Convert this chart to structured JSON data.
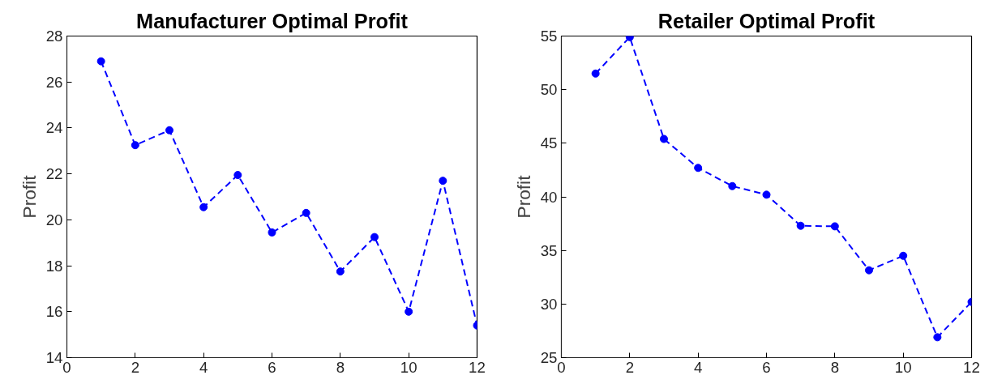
{
  "chart_data": [
    {
      "type": "line",
      "title": "Manufacturer Optimal Profit",
      "ylabel": "Profit",
      "x": [
        1,
        2,
        3,
        4,
        5,
        6,
        7,
        8,
        9,
        10,
        11,
        12
      ],
      "series": [
        {
          "color": "#0000ff",
          "values": [
            26.9,
            23.25,
            23.9,
            20.55,
            21.95,
            19.45,
            20.3,
            17.75,
            19.25,
            16.0,
            21.7,
            15.4
          ]
        }
      ],
      "xlim": [
        0,
        12
      ],
      "xticks": [
        0,
        2,
        4,
        6,
        8,
        10,
        12
      ],
      "ylim": [
        14,
        28
      ],
      "yticks": [
        14,
        16,
        18,
        20,
        22,
        24,
        26,
        28
      ],
      "grid": false,
      "marker": "circle",
      "line_style": "dashed"
    },
    {
      "type": "line",
      "title": "Retailer Optimal Profit",
      "ylabel": "Profit",
      "x": [
        1,
        2,
        3,
        4,
        5,
        6,
        7,
        8,
        9,
        10,
        11,
        12
      ],
      "series": [
        {
          "color": "#0000ff",
          "values": [
            51.5,
            54.9,
            45.4,
            42.7,
            41.0,
            40.2,
            37.3,
            37.25,
            33.15,
            34.5,
            26.9,
            30.2
          ]
        }
      ],
      "xlim": [
        0,
        12
      ],
      "xticks": [
        0,
        2,
        4,
        6,
        8,
        10,
        12
      ],
      "ylim": [
        25,
        55
      ],
      "yticks": [
        25,
        30,
        35,
        40,
        45,
        50,
        55
      ],
      "grid": false,
      "marker": "circle",
      "line_style": "dashed"
    }
  ]
}
